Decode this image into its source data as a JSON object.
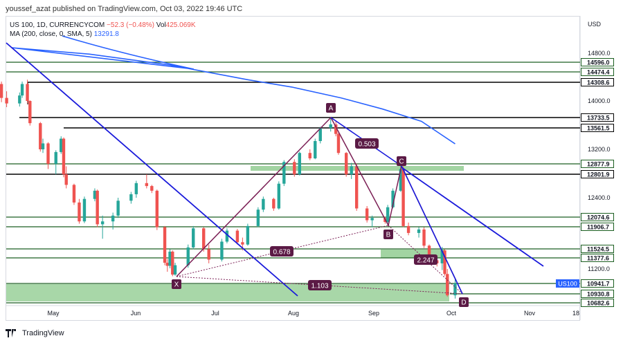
{
  "header": {
    "publisher_line": "youssef_azat published on TradingView.com, Oct 03, 2022 19:46 UTC"
  },
  "legend": {
    "symbol": "US 100, 1D, CURRENCYCOM",
    "change": "−52.3 (−0.48%)",
    "volume_label": "Vol",
    "volume_value": "425.069K",
    "ma_label": "MA (200, close, 0, SMA, 5)",
    "ma_value": "13291.8"
  },
  "footer": {
    "brand": "TradingView"
  },
  "colors": {
    "up": "#26a69a",
    "down": "#ef5350",
    "ma": "#2962ff",
    "trendline": "#1a1adb",
    "pattern": "#7b1f55",
    "hline_green": "#1b5e20",
    "hline_black": "#000000",
    "zone_fill": "#8bc98b",
    "badge": "#5b1a45"
  },
  "chart_data": {
    "type": "candlestick",
    "currency_label": "USD",
    "y_ticks": [
      14800.0,
      14000.0,
      13200.0,
      12400.0,
      11200.0
    ],
    "x_tick_labels": [
      "May",
      "Jun",
      "Jul",
      "Aug",
      "Sep",
      "Oct",
      "Nov",
      "18"
    ],
    "level_labels": [
      {
        "value": "14596.0",
        "color": "green"
      },
      {
        "value": "14474.4",
        "color": "green"
      },
      {
        "value": "14308.6",
        "color": "black"
      },
      {
        "value": "13733.5",
        "color": "black"
      },
      {
        "value": "13561.5",
        "color": "black"
      },
      {
        "value": "12877.9",
        "color": "green"
      },
      {
        "value": "12801.9",
        "color": "black"
      },
      {
        "value": "12074.6",
        "color": "green"
      },
      {
        "value": "11906.7",
        "color": "green"
      },
      {
        "value": "11524.5",
        "color": "green"
      },
      {
        "value": "11377.6",
        "color": "green"
      },
      {
        "value": "10941.7",
        "color": "green"
      },
      {
        "value": "10930.8",
        "color": "green"
      },
      {
        "value": "10682.6",
        "color": "green"
      }
    ],
    "last_price": {
      "symbol": "US100",
      "value": "10941.7"
    },
    "pattern_points": [
      {
        "label": "X",
        "date": "2022-06-16",
        "value": 11070
      },
      {
        "label": "A",
        "date": "2022-08-16",
        "value": 13733.5
      },
      {
        "label": "B",
        "date": "2022-09-06",
        "value": 11960
      },
      {
        "label": "C",
        "date": "2022-09-12",
        "value": 12877.9
      },
      {
        "label": "D",
        "date": "2022-10-03",
        "value": 10800
      }
    ],
    "ratios": [
      {
        "value": "0.503",
        "between": "A-C"
      },
      {
        "value": "0.678",
        "between": "X-B"
      },
      {
        "value": "2.247",
        "between": "C-D"
      },
      {
        "value": "1.103",
        "between": "X-D"
      }
    ],
    "ma200_points": [
      {
        "date": "2022-04-15",
        "value": 14920
      },
      {
        "date": "2022-05-15",
        "value": 14780
      },
      {
        "date": "2022-06-15",
        "value": 14560
      },
      {
        "date": "2022-07-15",
        "value": 14350
      },
      {
        "date": "2022-08-01",
        "value": 14230
      },
      {
        "date": "2022-08-20",
        "value": 14050
      },
      {
        "date": "2022-09-05",
        "value": 13870
      },
      {
        "date": "2022-09-20",
        "value": 13670
      },
      {
        "date": "2022-10-03",
        "value": 13291.8
      }
    ],
    "candles": [
      [
        "2022-04-11",
        14280,
        14320,
        13980,
        14050
      ],
      [
        "2022-04-13",
        14050,
        14160,
        13900,
        13960
      ],
      [
        "2022-04-18",
        13960,
        14140,
        13910,
        14090
      ],
      [
        "2022-04-19",
        14090,
        14320,
        14050,
        14280
      ],
      [
        "2022-04-21",
        14280,
        14350,
        13960,
        14000
      ],
      [
        "2022-04-22",
        14000,
        14010,
        13600,
        13640
      ],
      [
        "2022-04-26",
        13640,
        13660,
        13150,
        13200
      ],
      [
        "2022-04-27",
        13200,
        13380,
        13120,
        13300
      ],
      [
        "2022-04-29",
        13300,
        13320,
        12840,
        12880
      ],
      [
        "2022-05-02",
        12880,
        13180,
        12800,
        13140
      ],
      [
        "2022-05-04",
        13140,
        13420,
        13100,
        13380
      ],
      [
        "2022-05-05",
        13380,
        13400,
        12750,
        12800
      ],
      [
        "2022-05-06",
        12800,
        12860,
        12560,
        12620
      ],
      [
        "2022-05-09",
        12620,
        12640,
        12280,
        12320
      ],
      [
        "2022-05-11",
        12320,
        12380,
        11960,
        12000
      ],
      [
        "2022-05-13",
        12000,
        12420,
        11970,
        12380
      ],
      [
        "2022-05-17",
        12380,
        12560,
        12340,
        12520
      ],
      [
        "2022-05-18",
        12520,
        12540,
        11900,
        11950
      ],
      [
        "2022-05-20",
        11950,
        12100,
        11700,
        12000
      ],
      [
        "2022-05-24",
        12000,
        12150,
        11860,
        12100
      ],
      [
        "2022-05-26",
        12100,
        12400,
        12060,
        12350
      ],
      [
        "2022-05-31",
        12350,
        12500,
        12300,
        12460
      ],
      [
        "2022-06-02",
        12460,
        12690,
        12400,
        12650
      ],
      [
        "2022-06-06",
        12650,
        12800,
        12560,
        12600
      ],
      [
        "2022-06-08",
        12600,
        12620,
        12480,
        12520
      ],
      [
        "2022-06-10",
        12520,
        12540,
        11850,
        11900
      ],
      [
        "2022-06-13",
        11900,
        11920,
        11260,
        11300
      ],
      [
        "2022-06-14",
        11300,
        11360,
        11150,
        11250
      ],
      [
        "2022-06-15",
        11250,
        11520,
        11210,
        11480
      ],
      [
        "2022-06-16",
        11480,
        11500,
        11070,
        11100
      ],
      [
        "2022-06-17",
        11100,
        11300,
        11080,
        11260
      ],
      [
        "2022-06-22",
        11260,
        11600,
        11220,
        11550
      ],
      [
        "2022-06-24",
        11550,
        11920,
        11520,
        11880
      ],
      [
        "2022-06-28",
        11880,
        11900,
        11480,
        11520
      ],
      [
        "2022-06-30",
        11520,
        11600,
        11290,
        11350
      ],
      [
        "2022-07-05",
        11350,
        11700,
        11320,
        11650
      ],
      [
        "2022-07-07",
        11650,
        11880,
        11620,
        11840
      ],
      [
        "2022-07-11",
        11840,
        11870,
        11600,
        11640
      ],
      [
        "2022-07-13",
        11640,
        11720,
        11500,
        11600
      ],
      [
        "2022-07-15",
        11600,
        11960,
        11580,
        11920
      ],
      [
        "2022-07-19",
        11920,
        12240,
        11900,
        12200
      ],
      [
        "2022-07-21",
        12200,
        12420,
        12160,
        12380
      ],
      [
        "2022-07-25",
        12380,
        12400,
        12180,
        12220
      ],
      [
        "2022-07-27",
        12220,
        12680,
        12200,
        12640
      ],
      [
        "2022-07-29",
        12640,
        12960,
        12600,
        12920
      ],
      [
        "2022-08-02",
        12920,
        12980,
        12760,
        12800
      ],
      [
        "2022-08-04",
        12800,
        13150,
        12780,
        13120
      ],
      [
        "2022-08-08",
        13120,
        13200,
        12960,
        13000
      ],
      [
        "2022-08-10",
        13000,
        13380,
        12980,
        13340
      ],
      [
        "2022-08-12",
        13340,
        13580,
        13300,
        13560
      ],
      [
        "2022-08-16",
        13560,
        13733,
        13500,
        13620
      ],
      [
        "2022-08-18",
        13620,
        13680,
        13420,
        13460
      ],
      [
        "2022-08-19",
        13460,
        13480,
        13080,
        13120
      ],
      [
        "2022-08-22",
        13120,
        13140,
        12760,
        12800
      ],
      [
        "2022-08-24",
        12800,
        12900,
        12720,
        12860
      ],
      [
        "2022-08-26",
        12860,
        12880,
        12180,
        12220
      ],
      [
        "2022-08-30",
        12220,
        12260,
        11980,
        12020
      ],
      [
        "2022-09-01",
        12020,
        12100,
        11900,
        12060
      ],
      [
        "2022-09-06",
        12060,
        12080,
        11960,
        11990
      ],
      [
        "2022-09-07",
        11990,
        12280,
        11970,
        12240
      ],
      [
        "2022-09-09",
        12240,
        12560,
        12220,
        12520
      ],
      [
        "2022-09-12",
        12520,
        12877,
        12500,
        12840
      ],
      [
        "2022-09-13",
        12840,
        12860,
        11900,
        11920
      ],
      [
        "2022-09-15",
        11920,
        11980,
        11760,
        11800
      ],
      [
        "2022-09-19",
        11800,
        11900,
        11720,
        11860
      ],
      [
        "2022-09-21",
        11860,
        11900,
        11540,
        11580
      ],
      [
        "2022-09-23",
        11580,
        11600,
        11300,
        11340
      ],
      [
        "2022-09-26",
        11340,
        11420,
        11240,
        11290
      ],
      [
        "2022-09-28",
        11290,
        11560,
        11180,
        11500
      ],
      [
        "2022-09-29",
        11500,
        11520,
        11080,
        11110
      ],
      [
        "2022-09-30",
        11110,
        11200,
        10850,
        10890
      ],
      [
        "2022-10-03",
        10890,
        11040,
        10800,
        10941.7
      ]
    ]
  }
}
